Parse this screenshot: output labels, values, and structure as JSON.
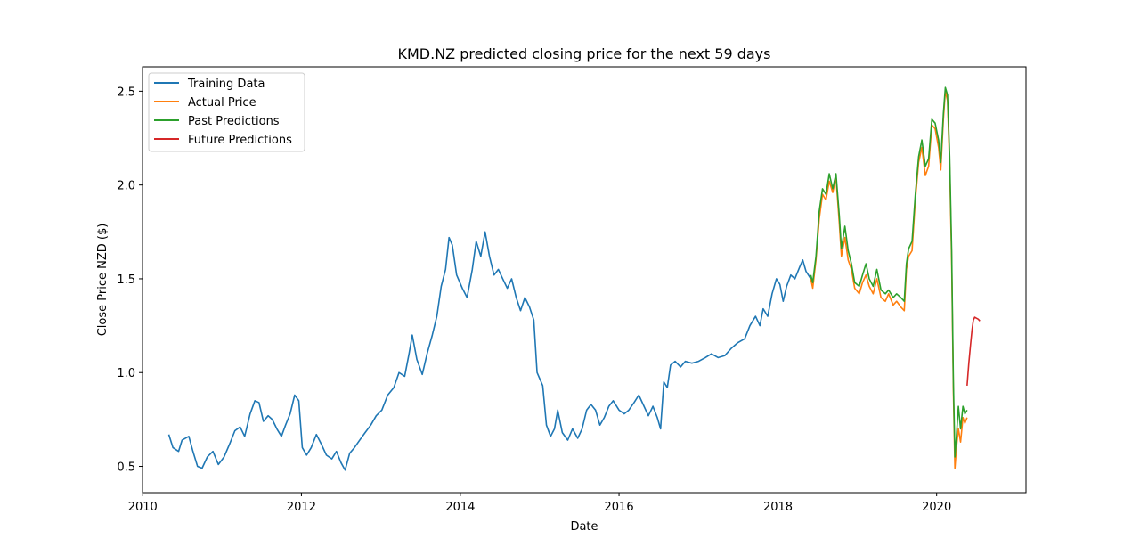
{
  "chart_data": {
    "type": "line",
    "title": "KMD.NZ predicted closing price for the next 59 days",
    "xlabel": "Date",
    "ylabel": "Close Price NZD ($)",
    "x_ticks": [
      "2010",
      "2012",
      "2014",
      "2016",
      "2018",
      "2020"
    ],
    "y_ticks": [
      "0.5",
      "1.0",
      "1.5",
      "2.0",
      "2.5"
    ],
    "xlim": [
      "2009-12-31",
      "2021-02-15"
    ],
    "ylim": [
      0.36,
      2.63
    ],
    "grid": false,
    "legend_position": "top-left",
    "series": [
      {
        "name": "Training Data",
        "color": "#1f77b4",
        "points": [
          [
            "2010-05-01",
            0.67
          ],
          [
            "2010-05-20",
            0.6
          ],
          [
            "2010-06-15",
            0.58
          ],
          [
            "2010-07-01",
            0.64
          ],
          [
            "2010-08-01",
            0.66
          ],
          [
            "2010-08-20",
            0.58
          ],
          [
            "2010-09-10",
            0.5
          ],
          [
            "2010-10-01",
            0.49
          ],
          [
            "2010-10-25",
            0.55
          ],
          [
            "2010-11-20",
            0.58
          ],
          [
            "2010-12-15",
            0.51
          ],
          [
            "2011-01-10",
            0.55
          ],
          [
            "2011-02-05",
            0.62
          ],
          [
            "2011-03-01",
            0.69
          ],
          [
            "2011-03-25",
            0.71
          ],
          [
            "2011-04-15",
            0.66
          ],
          [
            "2011-05-10",
            0.78
          ],
          [
            "2011-06-01",
            0.85
          ],
          [
            "2011-06-20",
            0.84
          ],
          [
            "2011-07-10",
            0.74
          ],
          [
            "2011-08-01",
            0.77
          ],
          [
            "2011-08-20",
            0.75
          ],
          [
            "2011-09-10",
            0.7
          ],
          [
            "2011-10-01",
            0.66
          ],
          [
            "2011-10-20",
            0.72
          ],
          [
            "2011-11-10",
            0.78
          ],
          [
            "2011-12-01",
            0.88
          ],
          [
            "2011-12-20",
            0.85
          ],
          [
            "2012-01-05",
            0.6
          ],
          [
            "2012-01-25",
            0.56
          ],
          [
            "2012-02-15",
            0.6
          ],
          [
            "2012-03-10",
            0.67
          ],
          [
            "2012-04-01",
            0.62
          ],
          [
            "2012-04-25",
            0.56
          ],
          [
            "2012-05-20",
            0.54
          ],
          [
            "2012-06-10",
            0.58
          ],
          [
            "2012-07-01",
            0.52
          ],
          [
            "2012-07-20",
            0.48
          ],
          [
            "2012-08-10",
            0.57
          ],
          [
            "2012-09-01",
            0.6
          ],
          [
            "2012-09-25",
            0.64
          ],
          [
            "2012-10-20",
            0.68
          ],
          [
            "2012-11-15",
            0.72
          ],
          [
            "2012-12-10",
            0.77
          ],
          [
            "2013-01-05",
            0.8
          ],
          [
            "2013-02-01",
            0.88
          ],
          [
            "2013-03-01",
            0.92
          ],
          [
            "2013-03-25",
            1.0
          ],
          [
            "2013-04-20",
            0.98
          ],
          [
            "2013-05-10",
            1.1
          ],
          [
            "2013-05-25",
            1.2
          ],
          [
            "2013-06-15",
            1.07
          ],
          [
            "2013-07-10",
            0.99
          ],
          [
            "2013-08-01",
            1.1
          ],
          [
            "2013-08-25",
            1.2
          ],
          [
            "2013-09-15",
            1.3
          ],
          [
            "2013-10-05",
            1.46
          ],
          [
            "2013-10-25",
            1.55
          ],
          [
            "2013-11-10",
            1.72
          ],
          [
            "2013-11-25",
            1.68
          ],
          [
            "2013-12-15",
            1.52
          ],
          [
            "2014-01-10",
            1.45
          ],
          [
            "2014-02-01",
            1.4
          ],
          [
            "2014-02-25",
            1.55
          ],
          [
            "2014-03-15",
            1.7
          ],
          [
            "2014-04-05",
            1.62
          ],
          [
            "2014-04-25",
            1.75
          ],
          [
            "2014-05-15",
            1.62
          ],
          [
            "2014-06-05",
            1.52
          ],
          [
            "2014-06-25",
            1.55
          ],
          [
            "2014-07-15",
            1.5
          ],
          [
            "2014-08-05",
            1.45
          ],
          [
            "2014-08-25",
            1.5
          ],
          [
            "2014-09-15",
            1.4
          ],
          [
            "2014-10-05",
            1.33
          ],
          [
            "2014-10-25",
            1.4
          ],
          [
            "2014-11-15",
            1.35
          ],
          [
            "2014-12-05",
            1.28
          ],
          [
            "2014-12-20",
            1.0
          ],
          [
            "2015-01-15",
            0.93
          ],
          [
            "2015-02-01",
            0.72
          ],
          [
            "2015-02-20",
            0.66
          ],
          [
            "2015-03-10",
            0.7
          ],
          [
            "2015-03-25",
            0.8
          ],
          [
            "2015-04-15",
            0.68
          ],
          [
            "2015-05-10",
            0.64
          ],
          [
            "2015-06-01",
            0.7
          ],
          [
            "2015-06-25",
            0.65
          ],
          [
            "2015-07-15",
            0.7
          ],
          [
            "2015-08-05",
            0.8
          ],
          [
            "2015-08-25",
            0.83
          ],
          [
            "2015-09-15",
            0.8
          ],
          [
            "2015-10-05",
            0.72
          ],
          [
            "2015-10-25",
            0.76
          ],
          [
            "2015-11-15",
            0.82
          ],
          [
            "2015-12-05",
            0.85
          ],
          [
            "2016-01-01",
            0.8
          ],
          [
            "2016-01-25",
            0.78
          ],
          [
            "2016-02-15",
            0.8
          ],
          [
            "2016-03-10",
            0.84
          ],
          [
            "2016-04-01",
            0.88
          ],
          [
            "2016-04-25",
            0.82
          ],
          [
            "2016-05-15",
            0.77
          ],
          [
            "2016-06-05",
            0.82
          ],
          [
            "2016-06-25",
            0.76
          ],
          [
            "2016-07-10",
            0.7
          ],
          [
            "2016-07-25",
            0.95
          ],
          [
            "2016-08-10",
            0.92
          ],
          [
            "2016-08-25",
            1.04
          ],
          [
            "2016-09-15",
            1.06
          ],
          [
            "2016-10-10",
            1.03
          ],
          [
            "2016-11-01",
            1.06
          ],
          [
            "2016-12-01",
            1.05
          ],
          [
            "2017-01-01",
            1.06
          ],
          [
            "2017-02-01",
            1.08
          ],
          [
            "2017-03-01",
            1.1
          ],
          [
            "2017-04-01",
            1.08
          ],
          [
            "2017-05-01",
            1.09
          ],
          [
            "2017-06-01",
            1.13
          ],
          [
            "2017-07-01",
            1.16
          ],
          [
            "2017-08-01",
            1.18
          ],
          [
            "2017-08-25",
            1.25
          ],
          [
            "2017-09-20",
            1.3
          ],
          [
            "2017-10-10",
            1.25
          ],
          [
            "2017-10-25",
            1.34
          ],
          [
            "2017-11-15",
            1.3
          ],
          [
            "2017-12-05",
            1.42
          ],
          [
            "2017-12-25",
            1.5
          ],
          [
            "2018-01-10",
            1.47
          ],
          [
            "2018-01-25",
            1.38
          ],
          [
            "2018-02-10",
            1.46
          ],
          [
            "2018-03-01",
            1.52
          ],
          [
            "2018-03-20",
            1.5
          ],
          [
            "2018-04-10",
            1.56
          ],
          [
            "2018-04-25",
            1.6
          ],
          [
            "2018-05-10",
            1.54
          ],
          [
            "2018-06-01",
            1.5
          ]
        ]
      },
      {
        "name": "Actual Price",
        "color": "#ff7f0e",
        "points": [
          [
            "2018-06-01",
            1.5
          ],
          [
            "2018-06-10",
            1.45
          ],
          [
            "2018-06-25",
            1.6
          ],
          [
            "2018-07-10",
            1.82
          ],
          [
            "2018-07-25",
            1.95
          ],
          [
            "2018-08-10",
            1.92
          ],
          [
            "2018-08-25",
            2.02
          ],
          [
            "2018-09-10",
            1.96
          ],
          [
            "2018-09-25",
            2.04
          ],
          [
            "2018-10-10",
            1.8
          ],
          [
            "2018-10-20",
            1.62
          ],
          [
            "2018-11-05",
            1.72
          ],
          [
            "2018-11-20",
            1.6
          ],
          [
            "2018-12-05",
            1.55
          ],
          [
            "2018-12-20",
            1.45
          ],
          [
            "2019-01-10",
            1.42
          ],
          [
            "2019-01-25",
            1.48
          ],
          [
            "2019-02-10",
            1.52
          ],
          [
            "2019-02-25",
            1.46
          ],
          [
            "2019-03-15",
            1.42
          ],
          [
            "2019-04-01",
            1.5
          ],
          [
            "2019-04-20",
            1.4
          ],
          [
            "2019-05-10",
            1.38
          ],
          [
            "2019-05-25",
            1.42
          ],
          [
            "2019-06-15",
            1.36
          ],
          [
            "2019-07-01",
            1.38
          ],
          [
            "2019-07-20",
            1.35
          ],
          [
            "2019-08-05",
            1.33
          ],
          [
            "2019-08-15",
            1.55
          ],
          [
            "2019-08-25",
            1.62
          ],
          [
            "2019-09-10",
            1.65
          ],
          [
            "2019-09-25",
            1.92
          ],
          [
            "2019-10-10",
            2.12
          ],
          [
            "2019-10-25",
            2.2
          ],
          [
            "2019-11-10",
            2.05
          ],
          [
            "2019-11-25",
            2.1
          ],
          [
            "2019-12-10",
            2.32
          ],
          [
            "2019-12-25",
            2.3
          ],
          [
            "2020-01-10",
            2.2
          ],
          [
            "2020-01-20",
            2.08
          ],
          [
            "2020-02-01",
            2.35
          ],
          [
            "2020-02-10",
            2.5
          ],
          [
            "2020-02-20",
            2.45
          ],
          [
            "2020-03-01",
            2.1
          ],
          [
            "2020-03-10",
            1.6
          ],
          [
            "2020-03-18",
            0.9
          ],
          [
            "2020-03-25",
            0.49
          ],
          [
            "2020-04-01",
            0.6
          ],
          [
            "2020-04-10",
            0.7
          ],
          [
            "2020-04-20",
            0.63
          ],
          [
            "2020-05-01",
            0.76
          ],
          [
            "2020-05-10",
            0.73
          ],
          [
            "2020-05-20",
            0.76
          ]
        ]
      },
      {
        "name": "Past Predictions",
        "color": "#2ca02c",
        "points": [
          [
            "2018-06-01",
            1.52
          ],
          [
            "2018-06-10",
            1.48
          ],
          [
            "2018-06-25",
            1.62
          ],
          [
            "2018-07-10",
            1.86
          ],
          [
            "2018-07-25",
            1.98
          ],
          [
            "2018-08-10",
            1.95
          ],
          [
            "2018-08-25",
            2.06
          ],
          [
            "2018-09-10",
            1.98
          ],
          [
            "2018-09-25",
            2.06
          ],
          [
            "2018-10-10",
            1.84
          ],
          [
            "2018-10-20",
            1.66
          ],
          [
            "2018-11-05",
            1.78
          ],
          [
            "2018-11-20",
            1.65
          ],
          [
            "2018-12-05",
            1.58
          ],
          [
            "2018-12-20",
            1.48
          ],
          [
            "2019-01-10",
            1.46
          ],
          [
            "2019-01-25",
            1.52
          ],
          [
            "2019-02-10",
            1.58
          ],
          [
            "2019-02-25",
            1.5
          ],
          [
            "2019-03-15",
            1.46
          ],
          [
            "2019-04-01",
            1.55
          ],
          [
            "2019-04-20",
            1.44
          ],
          [
            "2019-05-10",
            1.42
          ],
          [
            "2019-05-25",
            1.44
          ],
          [
            "2019-06-15",
            1.4
          ],
          [
            "2019-07-01",
            1.42
          ],
          [
            "2019-07-20",
            1.4
          ],
          [
            "2019-08-05",
            1.38
          ],
          [
            "2019-08-15",
            1.58
          ],
          [
            "2019-08-25",
            1.66
          ],
          [
            "2019-09-10",
            1.7
          ],
          [
            "2019-09-25",
            1.95
          ],
          [
            "2019-10-10",
            2.15
          ],
          [
            "2019-10-25",
            2.24
          ],
          [
            "2019-11-10",
            2.1
          ],
          [
            "2019-11-25",
            2.14
          ],
          [
            "2019-12-10",
            2.35
          ],
          [
            "2019-12-25",
            2.33
          ],
          [
            "2020-01-10",
            2.24
          ],
          [
            "2020-01-20",
            2.12
          ],
          [
            "2020-02-01",
            2.38
          ],
          [
            "2020-02-10",
            2.52
          ],
          [
            "2020-02-20",
            2.48
          ],
          [
            "2020-03-01",
            2.15
          ],
          [
            "2020-03-10",
            1.65
          ],
          [
            "2020-03-18",
            0.95
          ],
          [
            "2020-03-25",
            0.55
          ],
          [
            "2020-04-01",
            0.66
          ],
          [
            "2020-04-10",
            0.82
          ],
          [
            "2020-04-20",
            0.7
          ],
          [
            "2020-05-01",
            0.82
          ],
          [
            "2020-05-10",
            0.78
          ],
          [
            "2020-05-20",
            0.8
          ]
        ]
      },
      {
        "name": "Future Predictions",
        "color": "#d62728",
        "points": [
          [
            "2020-05-20",
            0.93
          ],
          [
            "2020-05-28",
            1.05
          ],
          [
            "2020-06-05",
            1.15
          ],
          [
            "2020-06-12",
            1.23
          ],
          [
            "2020-06-18",
            1.28
          ],
          [
            "2020-06-24",
            1.295
          ],
          [
            "2020-07-02",
            1.29
          ],
          [
            "2020-07-10",
            1.285
          ],
          [
            "2020-07-18",
            1.275
          ]
        ]
      }
    ]
  }
}
